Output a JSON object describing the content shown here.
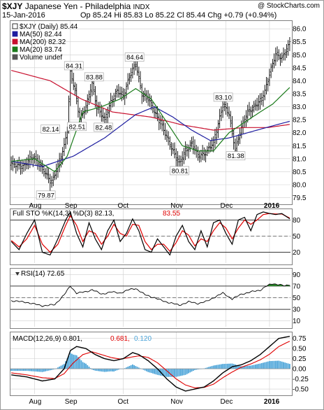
{
  "header": {
    "symbol": "$XJY",
    "name": "Japanese Yen - Philadelphia",
    "exchange": "INDX",
    "date": "15-Jan-2016",
    "ohlc": "Op 85.24 Hi 85.83 Lo 85.22 Cl 85.44 Chg +0.79 (+0.94%)",
    "copyright": "@ StockCharts.com"
  },
  "colors": {
    "price": "#000000",
    "ma50": "#1e1ea0",
    "ma200": "#c8102e",
    "ma20": "#1a7a1a",
    "sto_k": "#000000",
    "sto_d": "#e00000",
    "rsi": "#000000",
    "rsi_fill": "#2e8b2e",
    "macd": "#000000",
    "signal": "#e00000",
    "hist": "#4aa3d8",
    "grid": "#cfcfcf"
  },
  "chart_data": [
    {
      "type": "line",
      "panel": "price",
      "title": "$XJY (Daily) 85.44",
      "legend": [
        {
          "label": "$XJY (Daily) 85.44",
          "key": "price"
        },
        {
          "label": "MA(50) 82.44",
          "key": "ma50"
        },
        {
          "label": "MA(200) 82.32",
          "key": "ma200"
        },
        {
          "label": "MA(20) 83.74",
          "key": "ma20"
        },
        {
          "label": "Volume undef",
          "key": "volume"
        }
      ],
      "ylim": [
        79.3,
        86.3
      ],
      "yticks": [
        79.5,
        80.0,
        80.5,
        81.0,
        81.5,
        82.0,
        82.5,
        83.0,
        83.5,
        84.0,
        84.5,
        85.0,
        85.5,
        86.0
      ],
      "x_months": [
        {
          "label": "Aug",
          "i": 15
        },
        {
          "label": "Sep",
          "i": 38
        },
        {
          "label": "Oct",
          "i": 72
        },
        {
          "label": "Nov",
          "i": 106
        },
        {
          "label": "Dec",
          "i": 138
        },
        {
          "label": "2016",
          "i": 166
        }
      ],
      "n": 180,
      "price_anchors": [
        [
          0,
          80.8
        ],
        [
          8,
          80.7
        ],
        [
          14,
          81.1
        ],
        [
          20,
          80.6
        ],
        [
          26,
          80.1
        ],
        [
          30,
          80.7
        ],
        [
          34,
          81.5
        ],
        [
          36,
          82.14
        ],
        [
          38,
          84.31
        ],
        [
          41,
          83.6
        ],
        [
          44,
          82.51
        ],
        [
          48,
          83.0
        ],
        [
          52,
          83.88
        ],
        [
          55,
          83.0
        ],
        [
          60,
          82.48
        ],
        [
          64,
          83.2
        ],
        [
          68,
          83.6
        ],
        [
          72,
          83.4
        ],
        [
          76,
          84.2
        ],
        [
          80,
          84.64
        ],
        [
          84,
          83.5
        ],
        [
          88,
          83.3
        ],
        [
          92,
          82.8
        ],
        [
          96,
          82.4
        ],
        [
          100,
          81.8
        ],
        [
          104,
          81.3
        ],
        [
          108,
          80.81
        ],
        [
          112,
          81.3
        ],
        [
          116,
          81.6
        ],
        [
          120,
          81.1
        ],
        [
          124,
          81.2
        ],
        [
          130,
          81.6
        ],
        [
          134,
          82.6
        ],
        [
          136,
          83.1
        ],
        [
          140,
          82.7
        ],
        [
          142,
          82.0
        ],
        [
          144,
          81.38
        ],
        [
          148,
          82.2
        ],
        [
          152,
          82.8
        ],
        [
          156,
          83.0
        ],
        [
          160,
          83.2
        ],
        [
          163,
          83.6
        ],
        [
          166,
          84.3
        ],
        [
          170,
          85.0
        ],
        [
          174,
          84.9
        ],
        [
          177,
          85.2
        ],
        [
          179,
          85.44
        ]
      ],
      "annotations": [
        {
          "text": "79.87",
          "i": 22,
          "value": 79.87,
          "pos": "below"
        },
        {
          "text": "82.14",
          "i": 33,
          "value": 82.14,
          "pos": "left"
        },
        {
          "text": "84.31",
          "i": 40,
          "value": 84.31,
          "pos": "above"
        },
        {
          "text": "82.51",
          "i": 42,
          "value": 82.51,
          "pos": "below"
        },
        {
          "text": "83.88",
          "i": 53,
          "value": 83.88,
          "pos": "above"
        },
        {
          "text": "82.48",
          "i": 59,
          "value": 82.48,
          "pos": "below"
        },
        {
          "text": "84.64",
          "i": 79,
          "value": 84.64,
          "pos": "above"
        },
        {
          "text": "80.81",
          "i": 108,
          "value": 80.81,
          "pos": "below"
        },
        {
          "text": "83.10",
          "i": 136,
          "value": 83.1,
          "pos": "above"
        },
        {
          "text": "81.38",
          "i": 144,
          "value": 81.38,
          "pos": "below"
        }
      ],
      "ma50_anchors": [
        [
          0,
          80.9
        ],
        [
          20,
          80.7
        ],
        [
          40,
          81.1
        ],
        [
          60,
          81.8
        ],
        [
          80,
          82.7
        ],
        [
          92,
          83.0
        ],
        [
          104,
          82.6
        ],
        [
          116,
          82.1
        ],
        [
          128,
          81.7
        ],
        [
          140,
          81.8
        ],
        [
          152,
          82.0
        ],
        [
          164,
          82.2
        ],
        [
          179,
          82.44
        ]
      ],
      "ma200_anchors": [
        [
          0,
          84.4
        ],
        [
          25,
          84.0
        ],
        [
          45,
          83.3
        ],
        [
          65,
          82.8
        ],
        [
          90,
          82.6
        ],
        [
          110,
          82.3
        ],
        [
          130,
          82.1
        ],
        [
          150,
          82.2
        ],
        [
          165,
          82.2
        ],
        [
          179,
          82.32
        ]
      ],
      "ma20_anchors": [
        [
          0,
          80.9
        ],
        [
          15,
          81.0
        ],
        [
          28,
          80.5
        ],
        [
          36,
          81.1
        ],
        [
          46,
          82.8
        ],
        [
          58,
          83.0
        ],
        [
          70,
          83.3
        ],
        [
          80,
          83.7
        ],
        [
          90,
          83.3
        ],
        [
          100,
          82.4
        ],
        [
          110,
          81.5
        ],
        [
          120,
          81.3
        ],
        [
          130,
          81.3
        ],
        [
          140,
          82.0
        ],
        [
          150,
          82.4
        ],
        [
          160,
          82.8
        ],
        [
          168,
          83.1
        ],
        [
          179,
          83.74
        ]
      ]
    },
    {
      "type": "line",
      "panel": "sto",
      "title": "Full STO %K(14,3) %D(3) 82.13, 83.55",
      "legend_prefix": "Full STO %K(14,3) %D(3) 82.13,",
      "legend_value": "83.55",
      "ylim": [
        0,
        100
      ],
      "yticks": [
        20,
        50,
        80
      ],
      "k_anchors": [
        [
          0,
          40
        ],
        [
          5,
          25
        ],
        [
          10,
          55
        ],
        [
          15,
          80
        ],
        [
          20,
          20
        ],
        [
          25,
          15
        ],
        [
          30,
          45
        ],
        [
          35,
          80
        ],
        [
          38,
          95
        ],
        [
          42,
          55
        ],
        [
          46,
          30
        ],
        [
          50,
          75
        ],
        [
          54,
          45
        ],
        [
          58,
          25
        ],
        [
          62,
          60
        ],
        [
          66,
          80
        ],
        [
          70,
          40
        ],
        [
          74,
          55
        ],
        [
          78,
          82
        ],
        [
          82,
          60
        ],
        [
          86,
          25
        ],
        [
          90,
          20
        ],
        [
          94,
          45
        ],
        [
          98,
          30
        ],
        [
          102,
          15
        ],
        [
          106,
          50
        ],
        [
          110,
          70
        ],
        [
          114,
          40
        ],
        [
          118,
          25
        ],
        [
          122,
          60
        ],
        [
          126,
          30
        ],
        [
          130,
          75
        ],
        [
          134,
          80
        ],
        [
          138,
          55
        ],
        [
          142,
          35
        ],
        [
          146,
          80
        ],
        [
          150,
          85
        ],
        [
          154,
          60
        ],
        [
          158,
          90
        ],
        [
          162,
          95
        ],
        [
          166,
          92
        ],
        [
          170,
          90
        ],
        [
          174,
          92
        ],
        [
          179,
          82.13
        ]
      ],
      "d_anchors": [
        [
          0,
          42
        ],
        [
          5,
          30
        ],
        [
          10,
          45
        ],
        [
          15,
          70
        ],
        [
          20,
          35
        ],
        [
          25,
          20
        ],
        [
          30,
          35
        ],
        [
          35,
          70
        ],
        [
          38,
          88
        ],
        [
          42,
          70
        ],
        [
          46,
          40
        ],
        [
          50,
          60
        ],
        [
          54,
          55
        ],
        [
          58,
          35
        ],
        [
          62,
          50
        ],
        [
          66,
          72
        ],
        [
          70,
          55
        ],
        [
          74,
          50
        ],
        [
          78,
          72
        ],
        [
          82,
          70
        ],
        [
          86,
          40
        ],
        [
          90,
          25
        ],
        [
          94,
          35
        ],
        [
          98,
          35
        ],
        [
          102,
          22
        ],
        [
          106,
          38
        ],
        [
          110,
          60
        ],
        [
          114,
          52
        ],
        [
          118,
          32
        ],
        [
          122,
          45
        ],
        [
          126,
          40
        ],
        [
          130,
          60
        ],
        [
          134,
          75
        ],
        [
          138,
          65
        ],
        [
          142,
          45
        ],
        [
          146,
          65
        ],
        [
          150,
          80
        ],
        [
          154,
          72
        ],
        [
          158,
          80
        ],
        [
          162,
          90
        ],
        [
          166,
          92
        ],
        [
          170,
          91
        ],
        [
          174,
          91
        ],
        [
          179,
          83.55
        ]
      ]
    },
    {
      "type": "line",
      "panel": "rsi",
      "title": "RSI(14) 72.65",
      "legend_prefix": "RSI(14)",
      "legend_value": "72.65",
      "ylim": [
        0,
        100
      ],
      "yticks": [
        10,
        30,
        50,
        70,
        90
      ],
      "anchors": [
        [
          0,
          45
        ],
        [
          10,
          42
        ],
        [
          20,
          36
        ],
        [
          28,
          38
        ],
        [
          34,
          55
        ],
        [
          38,
          70
        ],
        [
          42,
          58
        ],
        [
          48,
          60
        ],
        [
          52,
          64
        ],
        [
          58,
          56
        ],
        [
          64,
          60
        ],
        [
          70,
          58
        ],
        [
          76,
          64
        ],
        [
          80,
          66
        ],
        [
          86,
          55
        ],
        [
          92,
          50
        ],
        [
          98,
          44
        ],
        [
          104,
          40
        ],
        [
          108,
          37
        ],
        [
          114,
          43
        ],
        [
          120,
          40
        ],
        [
          126,
          44
        ],
        [
          130,
          50
        ],
        [
          136,
          58
        ],
        [
          142,
          48
        ],
        [
          148,
          56
        ],
        [
          154,
          60
        ],
        [
          160,
          63
        ],
        [
          164,
          70
        ],
        [
          168,
          74
        ],
        [
          172,
          73
        ],
        [
          176,
          70
        ],
        [
          179,
          72.65
        ]
      ]
    },
    {
      "type": "line",
      "panel": "macd",
      "title": "MACD(12,26,9) 0.801, 0.681, 0.120",
      "legend_prefix": "MACD(12,26,9) 0.801,",
      "legend_signal": "0.681,",
      "legend_hist": "0.120",
      "ylim": [
        -0.62,
        0.9
      ],
      "yticks": [
        -0.5,
        -0.25,
        0.0,
        0.25,
        0.5,
        0.75
      ],
      "macd_anchors": [
        [
          0,
          -0.15
        ],
        [
          10,
          -0.2
        ],
        [
          20,
          -0.3
        ],
        [
          28,
          -0.25
        ],
        [
          34,
          0.0
        ],
        [
          38,
          0.45
        ],
        [
          42,
          0.55
        ],
        [
          48,
          0.5
        ],
        [
          54,
          0.35
        ],
        [
          60,
          0.25
        ],
        [
          66,
          0.2
        ],
        [
          72,
          0.25
        ],
        [
          78,
          0.4
        ],
        [
          82,
          0.35
        ],
        [
          88,
          0.2
        ],
        [
          94,
          0.0
        ],
        [
          100,
          -0.25
        ],
        [
          106,
          -0.45
        ],
        [
          112,
          -0.55
        ],
        [
          118,
          -0.5
        ],
        [
          124,
          -0.45
        ],
        [
          130,
          -0.3
        ],
        [
          136,
          -0.1
        ],
        [
          142,
          0.05
        ],
        [
          148,
          0.1
        ],
        [
          154,
          0.2
        ],
        [
          160,
          0.35
        ],
        [
          166,
          0.55
        ],
        [
          172,
          0.75
        ],
        [
          179,
          0.801
        ]
      ],
      "signal_anchors": [
        [
          0,
          -0.1
        ],
        [
          10,
          -0.15
        ],
        [
          20,
          -0.22
        ],
        [
          28,
          -0.24
        ],
        [
          34,
          -0.12
        ],
        [
          40,
          0.15
        ],
        [
          46,
          0.35
        ],
        [
          52,
          0.42
        ],
        [
          58,
          0.35
        ],
        [
          64,
          0.28
        ],
        [
          70,
          0.24
        ],
        [
          76,
          0.28
        ],
        [
          82,
          0.32
        ],
        [
          88,
          0.28
        ],
        [
          94,
          0.15
        ],
        [
          100,
          -0.05
        ],
        [
          106,
          -0.25
        ],
        [
          112,
          -0.4
        ],
        [
          118,
          -0.47
        ],
        [
          124,
          -0.46
        ],
        [
          130,
          -0.38
        ],
        [
          136,
          -0.22
        ],
        [
          142,
          -0.08
        ],
        [
          148,
          0.04
        ],
        [
          154,
          0.12
        ],
        [
          160,
          0.22
        ],
        [
          166,
          0.36
        ],
        [
          172,
          0.55
        ],
        [
          179,
          0.681
        ]
      ]
    }
  ]
}
